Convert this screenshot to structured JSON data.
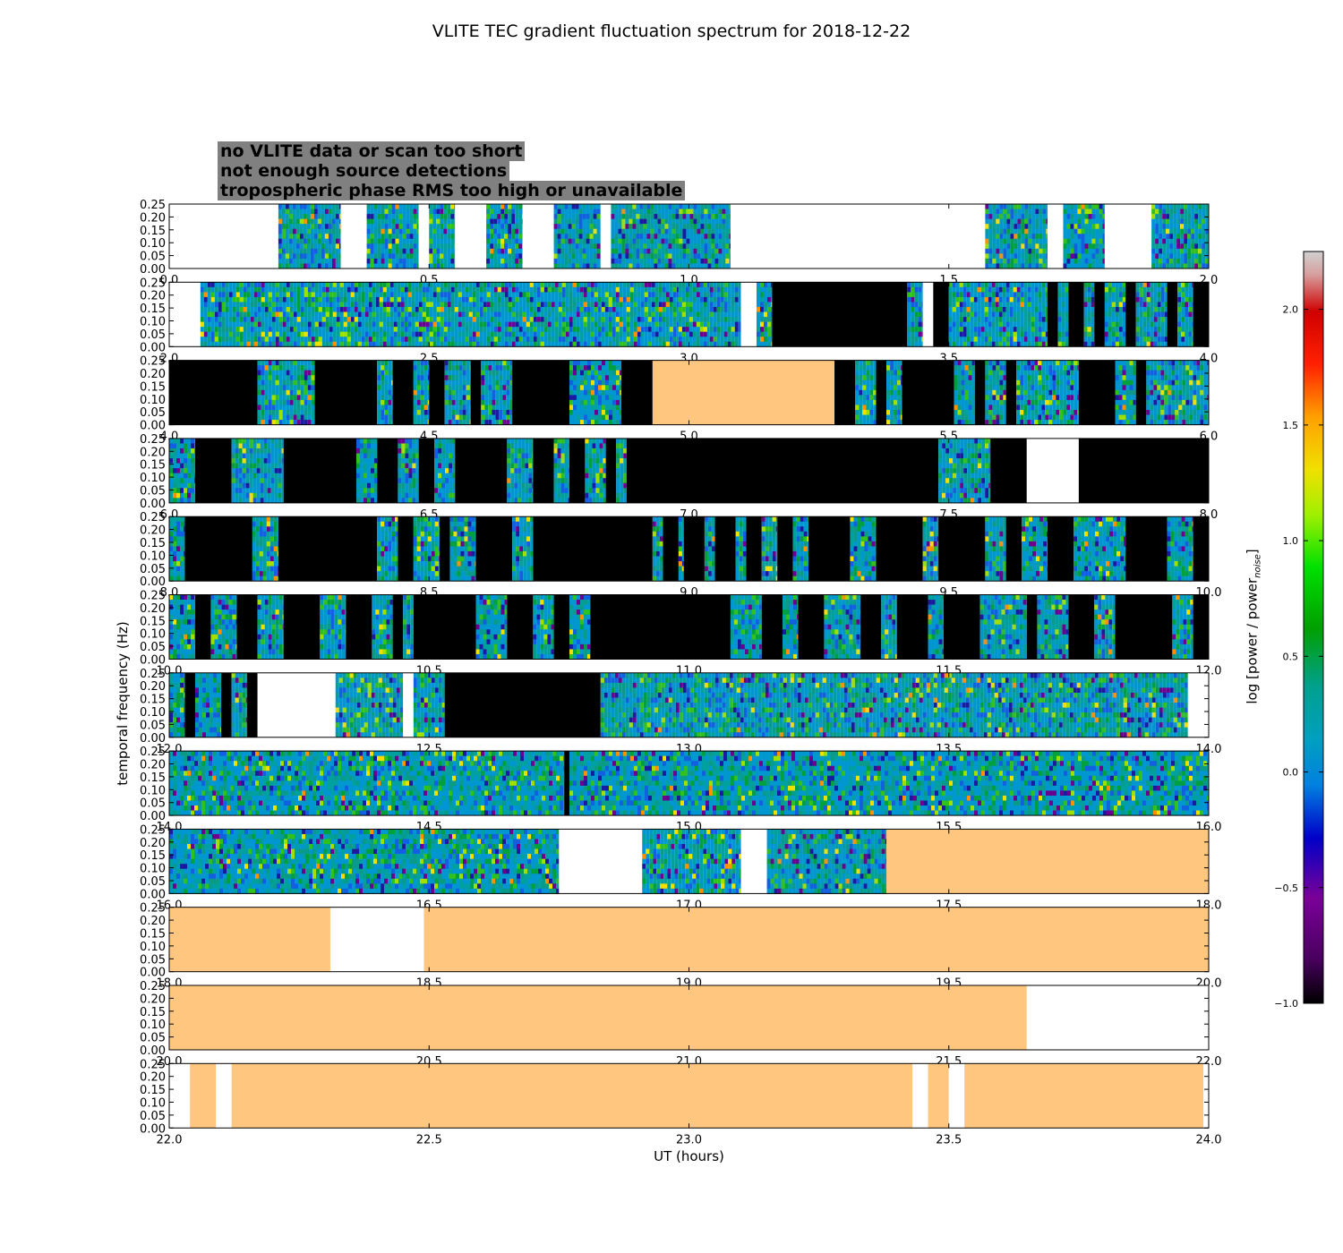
{
  "chart_data": {
    "type": "heatmap",
    "title": "VLITE TEC gradient fluctuation spectrum for 2018-12-22",
    "xlabel": "UT (hours)",
    "ylabel": "temporal frequency (Hz)",
    "colorbar_label": "log [power / power",
    "colorbar_label_sub": "noise",
    "colorbar_label_end": "]",
    "colorbar_range": [
      -1.0,
      2.25
    ],
    "colorbar_ticks": [
      "2.0",
      "1.5",
      "1.0",
      "0.5",
      "0.0",
      "−0.5",
      "−1.0"
    ],
    "colorbar_tick_values": [
      2.0,
      1.5,
      1.0,
      0.5,
      0.0,
      -0.5,
      -1.0
    ],
    "y_ticks": [
      "0.25",
      "0.20",
      "0.15",
      "0.10",
      "0.05",
      "0.00"
    ],
    "y_tick_values": [
      0.25,
      0.2,
      0.15,
      0.1,
      0.05,
      0.0
    ],
    "ylim": [
      0.0,
      0.25
    ],
    "legend": [
      {
        "label": "no VLITE data or scan too short",
        "text_color": "#ffffff"
      },
      {
        "label": "not enough source detections",
        "text_color": "#000000"
      },
      {
        "label": "tropospheric phase RMS too high or unavailable",
        "text_color": "#ffc27a"
      }
    ],
    "category_colors": {
      "black": "#000000",
      "orange": "#ffc67f",
      "white": "#ffffff"
    },
    "panels": [
      {
        "xlim": [
          0,
          2
        ],
        "x_ticks": [
          "0.0",
          "0.5",
          "1.0",
          "1.5",
          "2.0"
        ],
        "segments": [
          [
            0.21,
            0.33,
            "data"
          ],
          [
            0.33,
            0.38,
            "white"
          ],
          [
            0.38,
            0.48,
            "data"
          ],
          [
            0.48,
            0.5,
            "white"
          ],
          [
            0.5,
            0.55,
            "data"
          ],
          [
            0.55,
            0.61,
            "white"
          ],
          [
            0.61,
            0.68,
            "data"
          ],
          [
            0.68,
            0.74,
            "white"
          ],
          [
            0.74,
            0.83,
            "data"
          ],
          [
            0.83,
            0.85,
            "white"
          ],
          [
            0.85,
            1.08,
            "data"
          ],
          [
            1.08,
            1.57,
            "white"
          ],
          [
            1.57,
            1.69,
            "data"
          ],
          [
            1.69,
            1.72,
            "white"
          ],
          [
            1.72,
            1.8,
            "data"
          ],
          [
            1.8,
            1.89,
            "white"
          ],
          [
            1.89,
            2.0,
            "data"
          ]
        ]
      },
      {
        "xlim": [
          2,
          4
        ],
        "x_ticks": [
          "2.0",
          "2.5",
          "3.0",
          "3.5",
          "4.0"
        ],
        "segments": [
          [
            2.06,
            2.98,
            "data"
          ],
          [
            2.98,
            3.04,
            "data"
          ],
          [
            3.04,
            3.1,
            "data"
          ],
          [
            3.1,
            3.13,
            "white"
          ],
          [
            3.13,
            3.16,
            "data"
          ],
          [
            3.16,
            3.42,
            "black"
          ],
          [
            3.42,
            3.45,
            "data"
          ],
          [
            3.45,
            3.47,
            "white"
          ],
          [
            3.47,
            3.5,
            "black"
          ],
          [
            3.5,
            3.69,
            "data"
          ],
          [
            3.69,
            3.71,
            "black"
          ],
          [
            3.71,
            3.73,
            "data"
          ],
          [
            3.73,
            3.76,
            "black"
          ],
          [
            3.76,
            3.78,
            "data"
          ],
          [
            3.78,
            3.8,
            "black"
          ],
          [
            3.8,
            3.84,
            "data"
          ],
          [
            3.84,
            3.86,
            "black"
          ],
          [
            3.86,
            3.92,
            "data"
          ],
          [
            3.92,
            3.94,
            "black"
          ],
          [
            3.94,
            3.97,
            "data"
          ],
          [
            3.97,
            4.0,
            "black"
          ]
        ]
      },
      {
        "xlim": [
          4,
          6
        ],
        "x_ticks": [
          "4.0",
          "4.5",
          "5.0",
          "5.5",
          "6.0"
        ],
        "segments": [
          [
            4.0,
            4.17,
            "black"
          ],
          [
            4.17,
            4.28,
            "data"
          ],
          [
            4.28,
            4.4,
            "black"
          ],
          [
            4.4,
            4.43,
            "data"
          ],
          [
            4.43,
            4.47,
            "black"
          ],
          [
            4.47,
            4.5,
            "data"
          ],
          [
            4.5,
            4.53,
            "black"
          ],
          [
            4.53,
            4.58,
            "data"
          ],
          [
            4.58,
            4.6,
            "black"
          ],
          [
            4.6,
            4.66,
            "data"
          ],
          [
            4.66,
            4.77,
            "black"
          ],
          [
            4.77,
            4.87,
            "data"
          ],
          [
            4.87,
            4.93,
            "black"
          ],
          [
            4.93,
            5.28,
            "orange"
          ],
          [
            5.28,
            5.32,
            "black"
          ],
          [
            5.32,
            5.36,
            "data"
          ],
          [
            5.36,
            5.38,
            "black"
          ],
          [
            5.38,
            5.41,
            "data"
          ],
          [
            5.41,
            5.51,
            "black"
          ],
          [
            5.51,
            5.55,
            "data"
          ],
          [
            5.55,
            5.57,
            "black"
          ],
          [
            5.57,
            5.61,
            "data"
          ],
          [
            5.61,
            5.63,
            "black"
          ],
          [
            5.63,
            5.75,
            "data"
          ],
          [
            5.75,
            5.82,
            "black"
          ],
          [
            5.82,
            5.86,
            "data"
          ],
          [
            5.86,
            5.88,
            "black"
          ],
          [
            5.88,
            6.0,
            "data"
          ]
        ]
      },
      {
        "xlim": [
          6,
          8
        ],
        "x_ticks": [
          "6.0",
          "6.5",
          "7.0",
          "7.5",
          "8.0"
        ],
        "segments": [
          [
            6.0,
            6.05,
            "data"
          ],
          [
            6.05,
            6.12,
            "black"
          ],
          [
            6.12,
            6.22,
            "data"
          ],
          [
            6.22,
            6.36,
            "black"
          ],
          [
            6.36,
            6.4,
            "data"
          ],
          [
            6.4,
            6.44,
            "black"
          ],
          [
            6.44,
            6.48,
            "data"
          ],
          [
            6.48,
            6.51,
            "black"
          ],
          [
            6.51,
            6.55,
            "data"
          ],
          [
            6.55,
            6.65,
            "black"
          ],
          [
            6.65,
            6.7,
            "data"
          ],
          [
            6.7,
            6.74,
            "black"
          ],
          [
            6.74,
            6.77,
            "data"
          ],
          [
            6.77,
            6.8,
            "black"
          ],
          [
            6.8,
            6.84,
            "data"
          ],
          [
            6.84,
            6.86,
            "black"
          ],
          [
            6.86,
            6.88,
            "data"
          ],
          [
            6.88,
            7.48,
            "black"
          ],
          [
            7.48,
            7.58,
            "data"
          ],
          [
            7.58,
            7.65,
            "black"
          ],
          [
            7.65,
            7.75,
            "white"
          ],
          [
            7.75,
            8.0,
            "black"
          ]
        ]
      },
      {
        "xlim": [
          8,
          10
        ],
        "x_ticks": [
          "8.0",
          "8.5",
          "9.0",
          "9.5",
          "10.0"
        ],
        "segments": [
          [
            8.0,
            8.03,
            "data"
          ],
          [
            8.03,
            8.16,
            "black"
          ],
          [
            8.16,
            8.21,
            "data"
          ],
          [
            8.21,
            8.4,
            "black"
          ],
          [
            8.4,
            8.44,
            "data"
          ],
          [
            8.44,
            8.47,
            "black"
          ],
          [
            8.47,
            8.52,
            "data"
          ],
          [
            8.52,
            8.54,
            "black"
          ],
          [
            8.54,
            8.59,
            "data"
          ],
          [
            8.59,
            8.66,
            "black"
          ],
          [
            8.66,
            8.7,
            "data"
          ],
          [
            8.7,
            8.93,
            "black"
          ],
          [
            8.93,
            8.95,
            "data"
          ],
          [
            8.95,
            8.98,
            "black"
          ],
          [
            8.98,
            8.99,
            "data"
          ],
          [
            8.99,
            9.03,
            "black"
          ],
          [
            9.03,
            9.05,
            "data"
          ],
          [
            9.05,
            9.09,
            "black"
          ],
          [
            9.09,
            9.11,
            "data"
          ],
          [
            9.11,
            9.14,
            "black"
          ],
          [
            9.14,
            9.17,
            "data"
          ],
          [
            9.17,
            9.2,
            "black"
          ],
          [
            9.2,
            9.23,
            "data"
          ],
          [
            9.23,
            9.31,
            "black"
          ],
          [
            9.31,
            9.36,
            "data"
          ],
          [
            9.36,
            9.45,
            "black"
          ],
          [
            9.45,
            9.48,
            "data"
          ],
          [
            9.48,
            9.57,
            "black"
          ],
          [
            9.57,
            9.61,
            "data"
          ],
          [
            9.61,
            9.64,
            "black"
          ],
          [
            9.64,
            9.69,
            "data"
          ],
          [
            9.69,
            9.74,
            "black"
          ],
          [
            9.74,
            9.84,
            "data"
          ],
          [
            9.84,
            9.92,
            "black"
          ],
          [
            9.92,
            9.97,
            "data"
          ],
          [
            9.97,
            10.0,
            "black"
          ]
        ]
      },
      {
        "xlim": [
          10,
          12
        ],
        "x_ticks": [
          "10.0",
          "10.5",
          "11.0",
          "11.5",
          "12.0"
        ],
        "segments": [
          [
            10.0,
            10.05,
            "data"
          ],
          [
            10.05,
            10.08,
            "black"
          ],
          [
            10.08,
            10.13,
            "data"
          ],
          [
            10.13,
            10.17,
            "black"
          ],
          [
            10.17,
            10.22,
            "data"
          ],
          [
            10.22,
            10.29,
            "black"
          ],
          [
            10.29,
            10.34,
            "data"
          ],
          [
            10.34,
            10.39,
            "black"
          ],
          [
            10.39,
            10.43,
            "data"
          ],
          [
            10.43,
            10.45,
            "black"
          ],
          [
            10.45,
            10.47,
            "data"
          ],
          [
            10.47,
            10.59,
            "black"
          ],
          [
            10.59,
            10.65,
            "data"
          ],
          [
            10.65,
            10.7,
            "black"
          ],
          [
            10.7,
            10.74,
            "data"
          ],
          [
            10.74,
            10.77,
            "black"
          ],
          [
            10.77,
            10.81,
            "data"
          ],
          [
            10.81,
            11.08,
            "black"
          ],
          [
            11.08,
            11.14,
            "data"
          ],
          [
            11.14,
            11.18,
            "black"
          ],
          [
            11.18,
            11.21,
            "data"
          ],
          [
            11.21,
            11.26,
            "black"
          ],
          [
            11.26,
            11.33,
            "data"
          ],
          [
            11.33,
            11.37,
            "black"
          ],
          [
            11.37,
            11.4,
            "data"
          ],
          [
            11.4,
            11.46,
            "black"
          ],
          [
            11.46,
            11.49,
            "data"
          ],
          [
            11.49,
            11.56,
            "black"
          ],
          [
            11.56,
            11.65,
            "data"
          ],
          [
            11.65,
            11.67,
            "black"
          ],
          [
            11.67,
            11.73,
            "data"
          ],
          [
            11.73,
            11.78,
            "black"
          ],
          [
            11.78,
            11.82,
            "data"
          ],
          [
            11.82,
            11.93,
            "black"
          ],
          [
            11.93,
            11.97,
            "data"
          ],
          [
            11.97,
            12.0,
            "black"
          ]
        ]
      },
      {
        "xlim": [
          12,
          14
        ],
        "x_ticks": [
          "12.0",
          "12.5",
          "13.0",
          "13.5",
          "14.0"
        ],
        "segments": [
          [
            12.0,
            12.03,
            "data"
          ],
          [
            12.03,
            12.05,
            "black"
          ],
          [
            12.05,
            12.1,
            "data"
          ],
          [
            12.1,
            12.12,
            "black"
          ],
          [
            12.12,
            12.15,
            "data"
          ],
          [
            12.15,
            12.17,
            "black"
          ],
          [
            12.17,
            12.32,
            "white"
          ],
          [
            12.32,
            12.45,
            "data"
          ],
          [
            12.45,
            12.47,
            "white"
          ],
          [
            12.47,
            12.53,
            "data"
          ],
          [
            12.53,
            12.83,
            "black"
          ],
          [
            12.83,
            13.96,
            "data"
          ],
          [
            13.96,
            14.0,
            "white"
          ]
        ]
      },
      {
        "xlim": [
          14,
          16
        ],
        "x_ticks": [
          "14.0",
          "14.5",
          "15.0",
          "15.5",
          "16.0"
        ],
        "segments": [
          [
            14.0,
            14.76,
            "data"
          ],
          [
            14.76,
            14.77,
            "black"
          ],
          [
            14.77,
            16.0,
            "data"
          ]
        ]
      },
      {
        "xlim": [
          16,
          18
        ],
        "x_ticks": [
          "16.0",
          "16.5",
          "17.0",
          "17.5",
          "18.0"
        ],
        "segments": [
          [
            16.0,
            16.75,
            "data"
          ],
          [
            16.75,
            16.91,
            "white"
          ],
          [
            16.91,
            17.1,
            "data"
          ],
          [
            17.1,
            17.15,
            "white"
          ],
          [
            17.15,
            17.38,
            "data"
          ],
          [
            17.38,
            18.0,
            "orange"
          ]
        ]
      },
      {
        "xlim": [
          18,
          20
        ],
        "x_ticks": [
          "18.0",
          "18.5",
          "19.0",
          "19.5",
          "20.0"
        ],
        "segments": [
          [
            18.0,
            18.31,
            "orange"
          ],
          [
            18.31,
            18.49,
            "white"
          ],
          [
            18.49,
            20.0,
            "orange"
          ]
        ]
      },
      {
        "xlim": [
          20,
          22
        ],
        "x_ticks": [
          "20.0",
          "20.5",
          "21.0",
          "21.5",
          "22.0"
        ],
        "segments": [
          [
            20.0,
            21.65,
            "orange"
          ],
          [
            21.65,
            22.0,
            "white"
          ]
        ]
      },
      {
        "xlim": [
          22,
          24
        ],
        "x_ticks": [
          "22.0",
          "22.5",
          "23.0",
          "23.5",
          "24.0"
        ],
        "segments": [
          [
            22.0,
            22.04,
            "white"
          ],
          [
            22.04,
            22.09,
            "orange"
          ],
          [
            22.09,
            22.12,
            "white"
          ],
          [
            22.12,
            23.43,
            "orange"
          ],
          [
            23.43,
            23.46,
            "white"
          ],
          [
            23.46,
            23.5,
            "orange"
          ],
          [
            23.5,
            23.53,
            "white"
          ],
          [
            23.53,
            23.99,
            "orange"
          ],
          [
            23.99,
            24.0,
            "white"
          ]
        ]
      }
    ]
  }
}
